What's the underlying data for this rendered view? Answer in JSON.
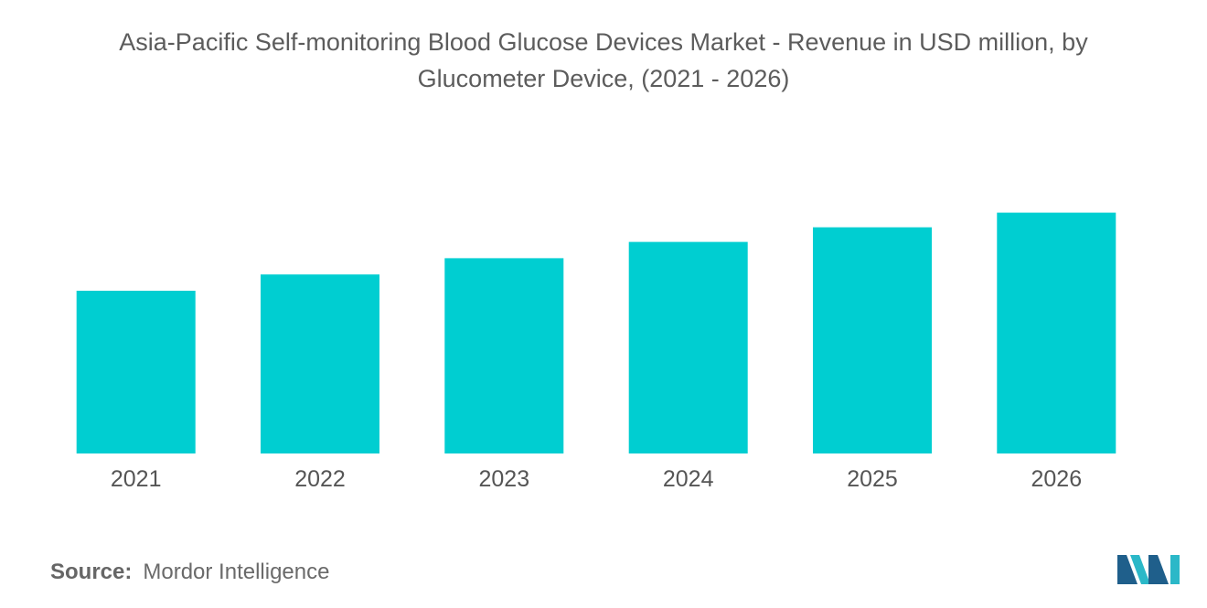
{
  "title_line1": "Asia-Pacific Self-monitoring Blood Glucose Devices Market - Revenue in USD million, by",
  "title_line2": "Glucometer Device, (2021 - 2026)",
  "source_label": "Source:",
  "source_value": "Mordor Intelligence",
  "colors": {
    "bar": "#00CED1",
    "logo_dark": "#1f5f8b",
    "logo_light": "#2bb8c8"
  },
  "chart_data": {
    "type": "bar",
    "title": "Asia-Pacific Self-monitoring Blood Glucose Devices Market - Revenue in USD million, by Glucometer Device, (2021 - 2026)",
    "categories": [
      "2021",
      "2022",
      "2023",
      "2024",
      "2025",
      "2026"
    ],
    "values": [
      50,
      55,
      60,
      65,
      69.5,
      74
    ],
    "xlabel": "",
    "ylabel": "",
    "ylim": [
      0,
      100
    ],
    "grid": false,
    "legend": "none"
  }
}
